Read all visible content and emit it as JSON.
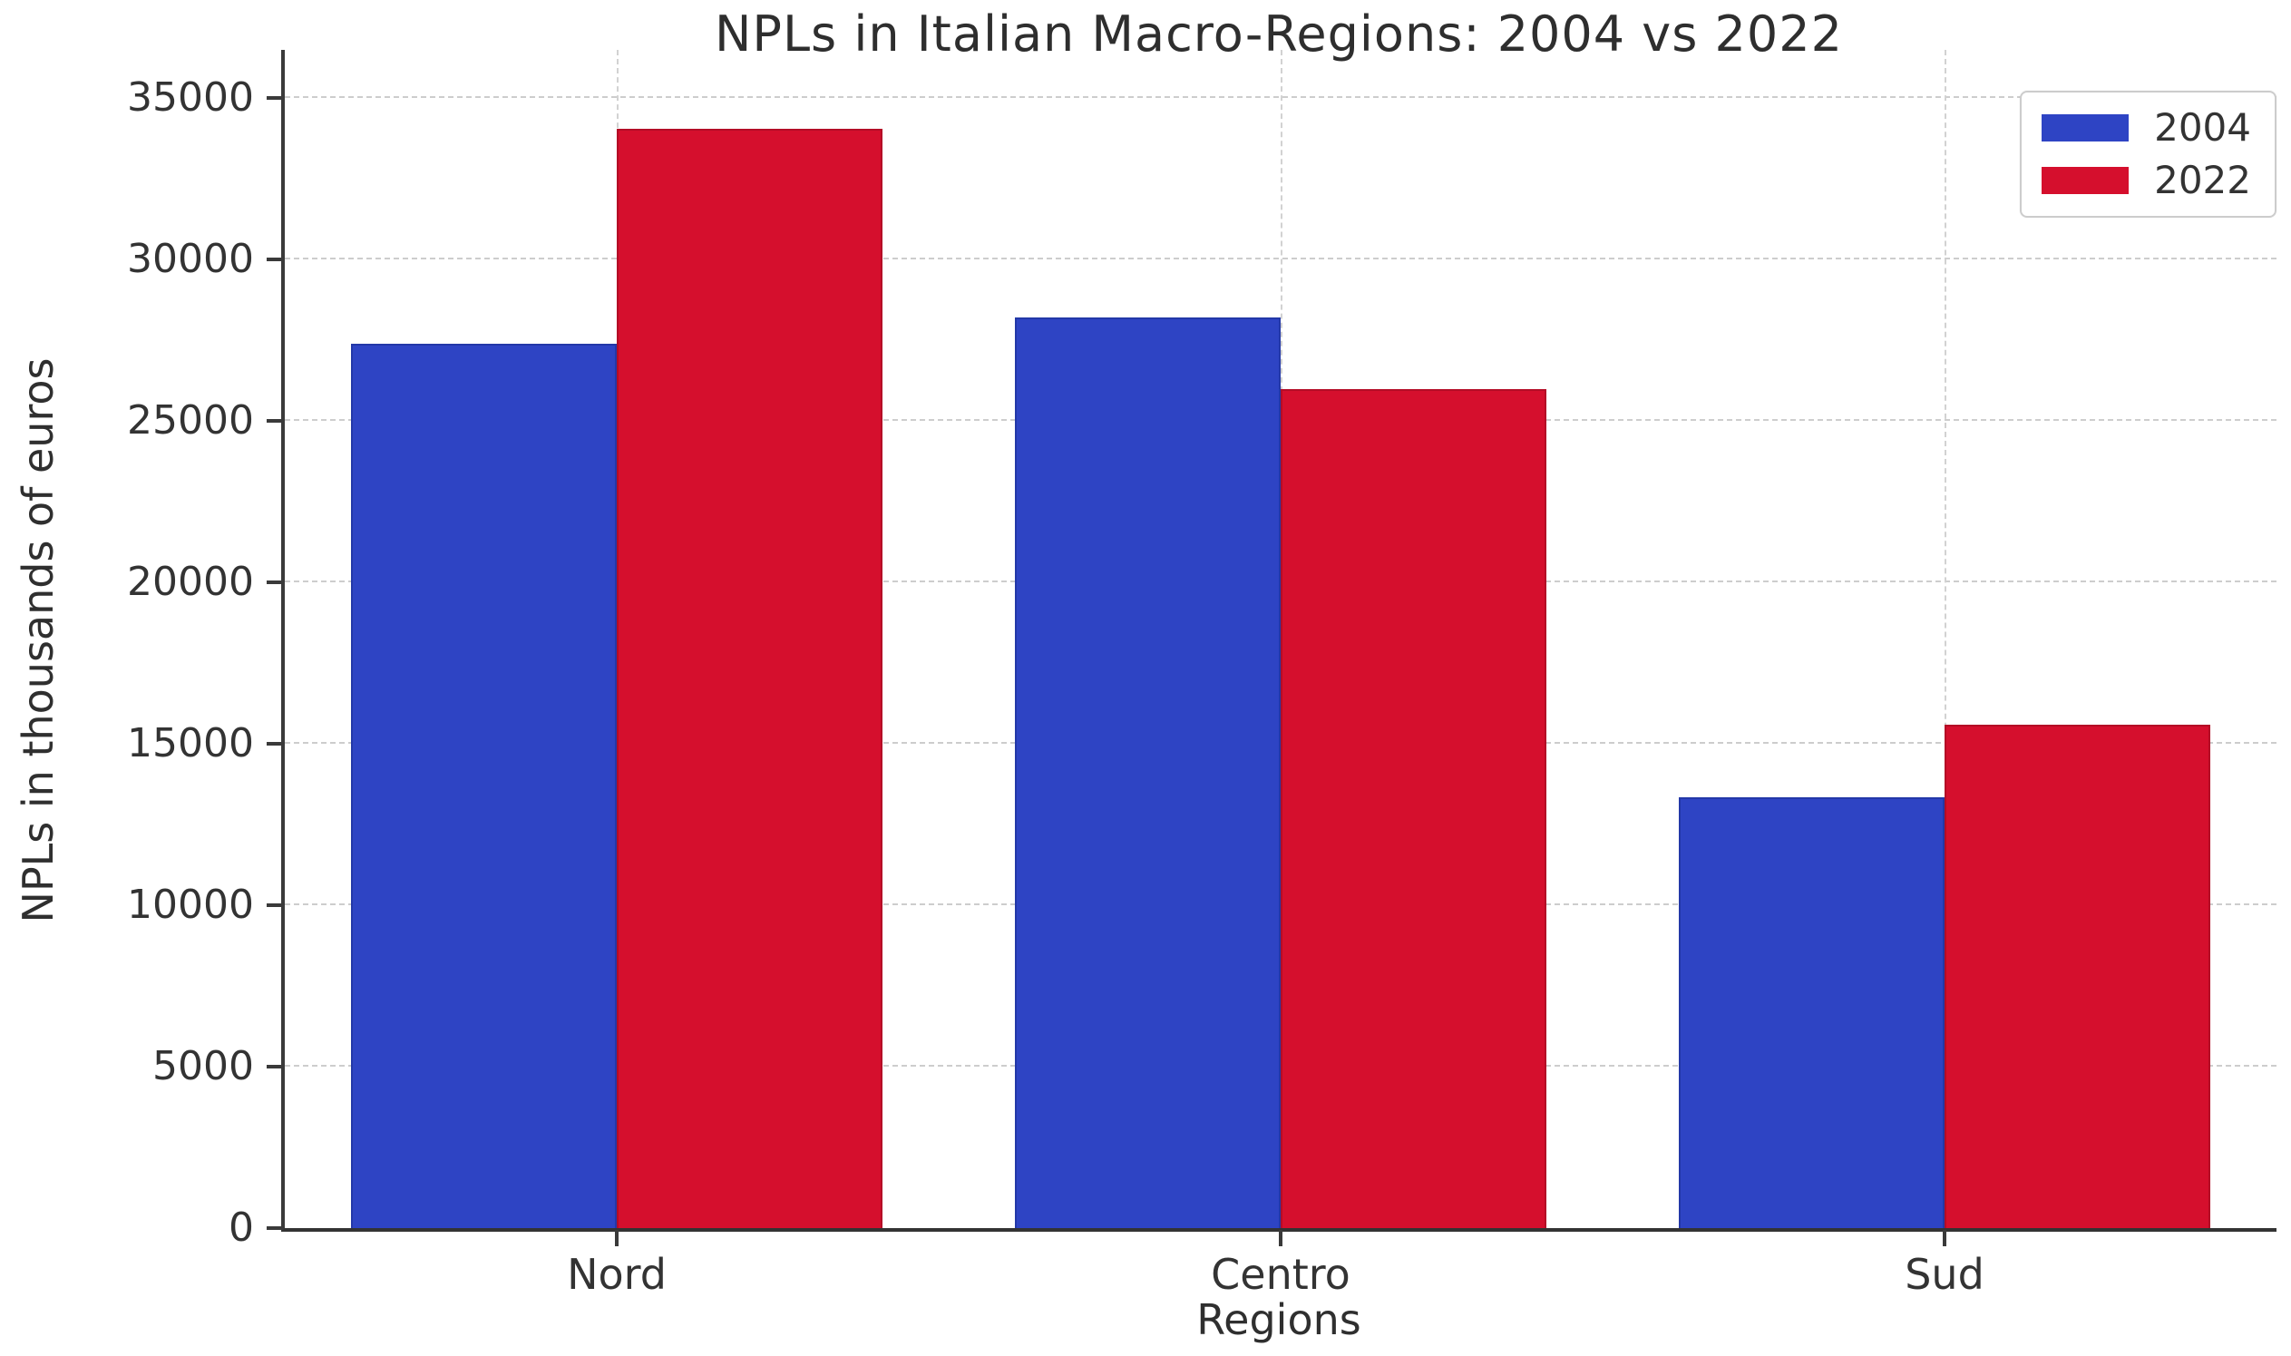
{
  "chart_data": {
    "type": "bar",
    "title": "NPLs in Italian Macro-Regions: 2004 vs 2022",
    "xlabel": "Regions",
    "ylabel": "NPLs in thousands of euros",
    "categories": [
      "Nord",
      "Centro",
      "Sud"
    ],
    "series": [
      {
        "name": "2004",
        "color": "#2E44C4",
        "edge": "#2338a8",
        "values": [
          27400,
          28200,
          13350
        ]
      },
      {
        "name": "2022",
        "color": "#D50F2D",
        "edge": "#b40c26",
        "values": [
          34050,
          26000,
          15600
        ]
      }
    ],
    "yticks": [
      0,
      5000,
      10000,
      15000,
      20000,
      25000,
      30000,
      35000
    ],
    "ylim": [
      0,
      36500
    ],
    "grid": true,
    "legend_position": "upper right",
    "style": {
      "text_color": "#333333",
      "grid_color": "#cdcdcd",
      "spine_color": "#3a3a3a",
      "background": "#ffffff"
    }
  }
}
